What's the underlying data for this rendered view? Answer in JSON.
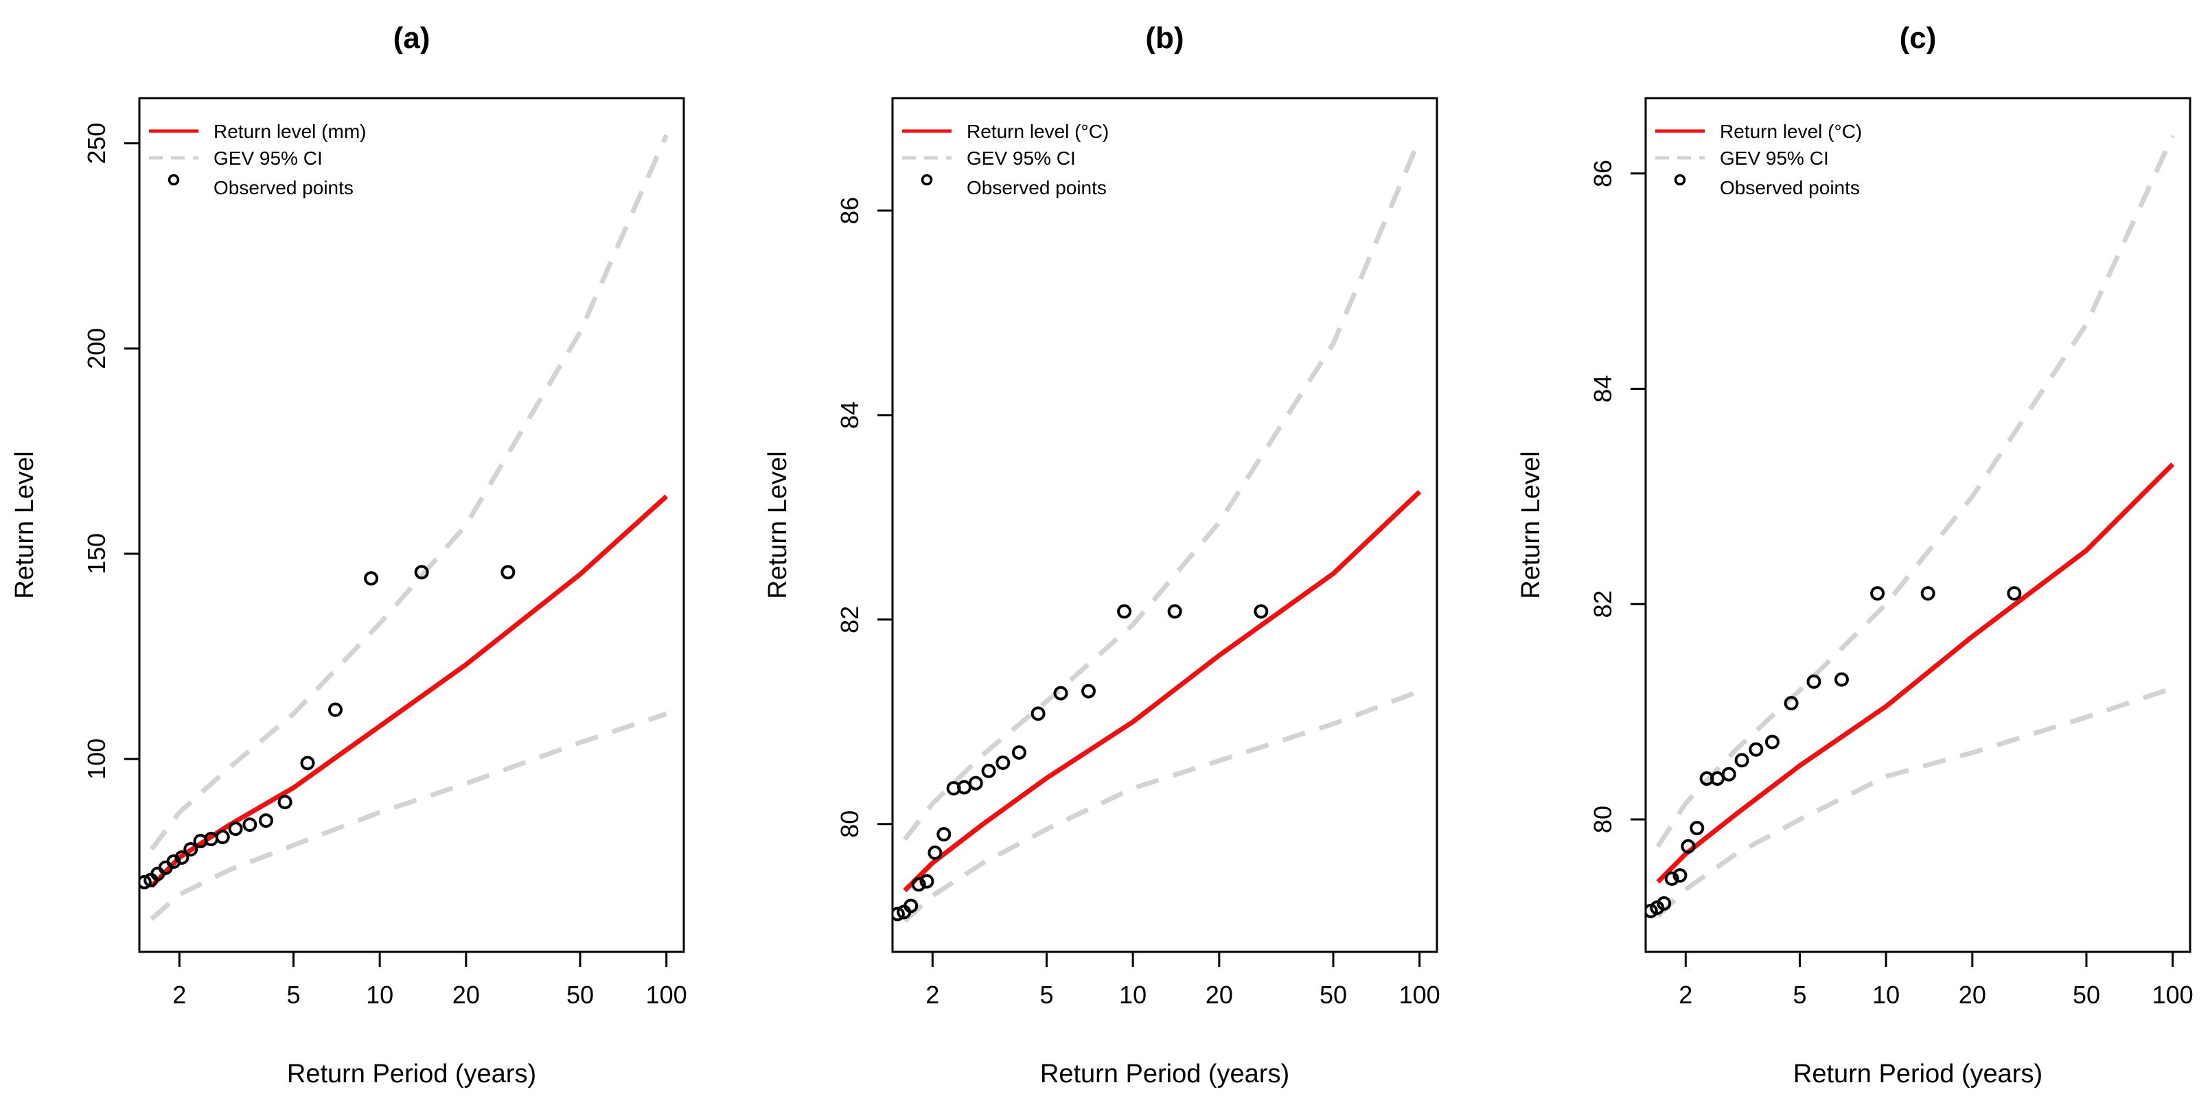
{
  "chart_data": [
    {
      "type": "line",
      "title": "(a)",
      "xlabel": "Return Period (years)",
      "ylabel": "Return Level",
      "xscale": "log",
      "xlim": [
        1.45,
        115
      ],
      "ylim": [
        53,
        261
      ],
      "xticks": [
        2,
        5,
        10,
        20,
        50,
        100
      ],
      "yticks": [
        100,
        150,
        200,
        250
      ],
      "legend_position": "top-left",
      "legend": {
        "return_level": "Return level (mm)",
        "ci": "GEV 95% CI",
        "observed": "Observed points"
      },
      "series": [
        {
          "name": "Return level (mm)",
          "style": "solid",
          "color": "#ee1111",
          "x": [
            1.6,
            2,
            3,
            5,
            10,
            20,
            50,
            100
          ],
          "y": [
            69,
            76,
            84,
            93,
            108,
            123,
            145,
            164
          ]
        },
        {
          "name": "GEV 95% CI upper",
          "style": "dashed",
          "color": "#d3d3d3",
          "x": [
            1.6,
            2,
            3,
            5,
            10,
            20,
            50,
            100
          ],
          "y": [
            78,
            87,
            98,
            111,
            133,
            157,
            204,
            252
          ]
        },
        {
          "name": "GEV 95% CI lower",
          "style": "dashed",
          "color": "#d3d3d3",
          "x": [
            1.6,
            2,
            3,
            5,
            10,
            20,
            50,
            100
          ],
          "y": [
            61,
            67,
            73,
            79,
            87,
            94,
            104,
            111
          ]
        }
      ],
      "observed_points": {
        "x": [
          1.51,
          1.59,
          1.68,
          1.79,
          1.91,
          2.04,
          2.19,
          2.37,
          2.58,
          2.83,
          3.14,
          3.52,
          4.01,
          4.67,
          5.6,
          7.0,
          9.33,
          14.0,
          28.0
        ],
        "y": [
          70,
          70.5,
          72,
          73.5,
          75,
          76,
          78,
          80,
          80.5,
          81,
          83,
          84,
          85,
          89.5,
          99,
          112,
          144,
          145.5,
          145.5
        ]
      }
    },
    {
      "type": "line",
      "title": "(b)",
      "xlabel": "Return Period (years)",
      "ylabel": "Return Level",
      "xscale": "log",
      "xlim": [
        1.45,
        115
      ],
      "ylim": [
        78.75,
        87.1
      ],
      "xticks": [
        2,
        5,
        10,
        20,
        50,
        100
      ],
      "yticks": [
        80,
        82,
        84,
        86
      ],
      "legend_position": "top-left",
      "legend": {
        "return_level": "Return level (°C)",
        "ci": "GEV 95% CI",
        "observed": "Observed points"
      },
      "series": [
        {
          "name": "Return level (°C)",
          "style": "solid",
          "color": "#ee1111",
          "x": [
            1.6,
            2,
            3,
            5,
            10,
            20,
            50,
            100
          ],
          "y": [
            79.35,
            79.62,
            80.0,
            80.45,
            81.0,
            81.65,
            82.45,
            83.25
          ]
        },
        {
          "name": "GEV 95% CI upper",
          "style": "dashed",
          "color": "#d3d3d3",
          "x": [
            1.6,
            2,
            3,
            5,
            10,
            20,
            50,
            100
          ],
          "y": [
            79.85,
            80.2,
            80.68,
            81.2,
            81.95,
            82.95,
            84.7,
            86.7
          ]
        },
        {
          "name": "GEV 95% CI lower",
          "style": "dashed",
          "color": "#d3d3d3",
          "x": [
            1.6,
            2,
            3,
            5,
            10,
            20,
            50,
            100
          ],
          "y": [
            79.05,
            79.3,
            79.62,
            79.95,
            80.35,
            80.62,
            80.98,
            81.3
          ]
        }
      ],
      "observed_points": {
        "x": [
          1.51,
          1.59,
          1.68,
          1.79,
          1.91,
          2.04,
          2.19,
          2.37,
          2.58,
          2.83,
          3.14,
          3.52,
          4.01,
          4.67,
          5.6,
          7.0,
          9.33,
          14.0,
          28.0
        ],
        "y": [
          79.12,
          79.14,
          79.2,
          79.41,
          79.44,
          79.72,
          79.9,
          80.35,
          80.36,
          80.4,
          80.52,
          80.6,
          80.7,
          81.08,
          81.28,
          81.3,
          82.08,
          82.08,
          82.08
        ]
      }
    },
    {
      "type": "line",
      "title": "(c)",
      "xlabel": "Return Period (years)",
      "ylabel": "Return Level",
      "xscale": "log",
      "xlim": [
        1.45,
        115
      ],
      "ylim": [
        78.77,
        86.7
      ],
      "xticks": [
        2,
        5,
        10,
        20,
        50,
        100
      ],
      "yticks": [
        80,
        82,
        84,
        86
      ],
      "legend_position": "top-left",
      "legend": {
        "return_level": "Return level (°C)",
        "ci": "GEV 95% CI",
        "observed": "Observed points"
      },
      "series": [
        {
          "name": "Return level (°C)",
          "style": "solid",
          "color": "#ee1111",
          "x": [
            1.6,
            2,
            3,
            5,
            10,
            20,
            50,
            100
          ],
          "y": [
            79.42,
            79.68,
            80.05,
            80.5,
            81.05,
            81.7,
            82.5,
            83.3
          ]
        },
        {
          "name": "GEV 95% CI upper",
          "style": "dashed",
          "color": "#d3d3d3",
          "x": [
            1.6,
            2,
            3,
            5,
            10,
            20,
            50,
            100
          ],
          "y": [
            79.75,
            80.15,
            80.65,
            81.2,
            82.0,
            83.0,
            84.6,
            86.35
          ]
        },
        {
          "name": "GEV 95% CI lower",
          "style": "dashed",
          "color": "#d3d3d3",
          "x": [
            1.6,
            2,
            3,
            5,
            10,
            20,
            50,
            100
          ],
          "y": [
            79.1,
            79.35,
            79.68,
            80.0,
            80.4,
            80.62,
            80.95,
            81.22
          ]
        }
      ],
      "observed_points": {
        "x": [
          1.51,
          1.59,
          1.68,
          1.79,
          1.91,
          2.04,
          2.19,
          2.37,
          2.58,
          2.83,
          3.14,
          3.52,
          4.01,
          4.67,
          5.6,
          7.0,
          9.33,
          14.0,
          28.0
        ],
        "y": [
          79.15,
          79.18,
          79.22,
          79.45,
          79.48,
          79.75,
          79.92,
          80.38,
          80.38,
          80.42,
          80.55,
          80.65,
          80.72,
          81.08,
          81.28,
          81.3,
          82.1,
          82.1,
          82.1
        ]
      }
    }
  ]
}
